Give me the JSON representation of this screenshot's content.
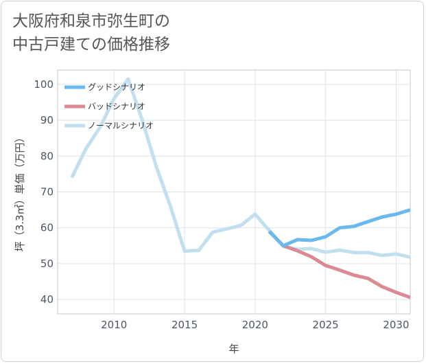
{
  "page": {
    "title": "大阪府和泉市弥生町の\n中古戸建ての価格推移"
  },
  "chart_data": {
    "type": "line",
    "title": "大阪府和泉市弥生町の中古戸建ての価格推移",
    "xlabel": "年",
    "ylabel": "坪（3.3㎡）単価（万円）",
    "xlim": [
      2006,
      2031
    ],
    "ylim": [
      36,
      104
    ],
    "x_ticks": [
      2010,
      2015,
      2020,
      2025,
      2030
    ],
    "y_ticks": [
      40,
      50,
      60,
      70,
      80,
      90,
      100
    ],
    "grid": true,
    "legend_position": "top-left",
    "series": [
      {
        "name": "グッドシナリオ",
        "color": "#6bb8ec",
        "points": [
          [
            2021,
            59.0
          ],
          [
            2022,
            55.0
          ],
          [
            2023,
            56.7
          ],
          [
            2024,
            56.5
          ],
          [
            2025,
            57.5
          ],
          [
            2026,
            60.0
          ],
          [
            2027,
            60.4
          ],
          [
            2028,
            61.7
          ],
          [
            2029,
            63.0
          ],
          [
            2030,
            63.8
          ],
          [
            2031,
            65.0
          ]
        ]
      },
      {
        "name": "バッドシナリオ",
        "color": "#db8993",
        "points": [
          [
            2021,
            59.0
          ],
          [
            2022,
            55.0
          ],
          [
            2023,
            53.6
          ],
          [
            2024,
            51.9
          ],
          [
            2025,
            49.5
          ],
          [
            2026,
            48.2
          ],
          [
            2027,
            46.8
          ],
          [
            2028,
            45.9
          ],
          [
            2029,
            43.6
          ],
          [
            2030,
            42.0
          ],
          [
            2031,
            40.6
          ]
        ]
      },
      {
        "name": "ノーマルシナリオ",
        "color": "#c1dfef",
        "points": [
          [
            2007,
            74.0
          ],
          [
            2008,
            82.0
          ],
          [
            2009,
            88.0
          ],
          [
            2010,
            96.0
          ],
          [
            2011,
            101.5
          ],
          [
            2012,
            90.0
          ],
          [
            2013,
            77.0
          ],
          [
            2014,
            66.0
          ],
          [
            2015,
            53.5
          ],
          [
            2016,
            53.7
          ],
          [
            2017,
            58.8
          ],
          [
            2018,
            59.7
          ],
          [
            2019,
            60.7
          ],
          [
            2020,
            63.8
          ],
          [
            2021,
            59.3
          ],
          [
            2022,
            54.8
          ],
          [
            2023,
            54.0
          ],
          [
            2024,
            54.2
          ],
          [
            2025,
            53.2
          ],
          [
            2026,
            53.8
          ],
          [
            2027,
            53.1
          ],
          [
            2028,
            53.1
          ],
          [
            2029,
            52.3
          ],
          [
            2030,
            52.7
          ],
          [
            2031,
            51.8
          ]
        ]
      }
    ]
  }
}
